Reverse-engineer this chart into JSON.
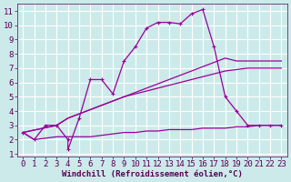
{
  "xlabel": "Windchill (Refroidissement éolien,°C)",
  "background_color": "#cceaea",
  "grid_color": "#ffffff",
  "line_color": "#990099",
  "xlim": [
    -0.5,
    23.5
  ],
  "ylim": [
    0.8,
    11.5
  ],
  "xticks": [
    0,
    1,
    2,
    3,
    4,
    5,
    6,
    7,
    8,
    9,
    10,
    11,
    12,
    13,
    14,
    15,
    16,
    17,
    18,
    19,
    20,
    21,
    22,
    23
  ],
  "yticks": [
    1,
    2,
    3,
    4,
    5,
    6,
    7,
    8,
    9,
    10,
    11
  ],
  "s1_x": [
    0,
    1,
    2,
    3,
    4,
    4,
    5,
    6,
    7,
    8,
    9,
    10,
    11,
    12,
    13,
    14,
    15,
    16,
    17,
    18,
    19,
    20,
    21,
    22,
    23
  ],
  "s1_y": [
    2.5,
    2.0,
    3.0,
    3.0,
    2.0,
    1.3,
    3.5,
    6.2,
    6.2,
    5.2,
    7.5,
    8.5,
    9.8,
    10.2,
    10.2,
    10.1,
    10.8,
    11.1,
    8.5,
    5.0,
    4.0,
    3.0,
    3.0,
    3.0,
    3.0
  ],
  "s2_x": [
    0,
    3,
    4,
    5,
    6,
    7,
    8,
    9,
    10,
    11,
    12,
    13,
    14,
    15,
    16,
    17,
    18,
    19,
    20,
    21,
    22,
    23
  ],
  "s2_y": [
    2.5,
    3.0,
    3.5,
    3.8,
    4.1,
    4.4,
    4.7,
    5.0,
    5.3,
    5.6,
    5.9,
    6.2,
    6.5,
    6.8,
    7.1,
    7.4,
    7.7,
    7.5,
    7.5,
    7.5,
    7.5,
    7.5
  ],
  "s3_x": [
    0,
    3,
    4,
    5,
    6,
    7,
    8,
    9,
    10,
    11,
    12,
    13,
    14,
    15,
    16,
    17,
    18,
    19,
    20,
    21,
    22,
    23
  ],
  "s3_y": [
    2.5,
    3.0,
    3.5,
    3.8,
    4.1,
    4.4,
    4.7,
    5.0,
    5.2,
    5.4,
    5.6,
    5.8,
    6.0,
    6.2,
    6.4,
    6.6,
    6.8,
    6.9,
    7.0,
    7.0,
    7.0,
    7.0
  ],
  "s4_x": [
    0,
    1,
    2,
    3,
    4,
    5,
    6,
    7,
    8,
    9,
    10,
    11,
    12,
    13,
    14,
    15,
    16,
    17,
    18,
    19,
    20,
    21,
    22,
    23
  ],
  "s4_y": [
    2.5,
    2.0,
    2.1,
    2.2,
    2.2,
    2.2,
    2.2,
    2.3,
    2.4,
    2.5,
    2.5,
    2.6,
    2.6,
    2.7,
    2.7,
    2.7,
    2.8,
    2.8,
    2.8,
    2.9,
    2.9,
    3.0,
    3.0,
    3.0
  ],
  "font_family": "monospace",
  "tick_fontsize": 6.5,
  "label_fontsize": 6.5
}
